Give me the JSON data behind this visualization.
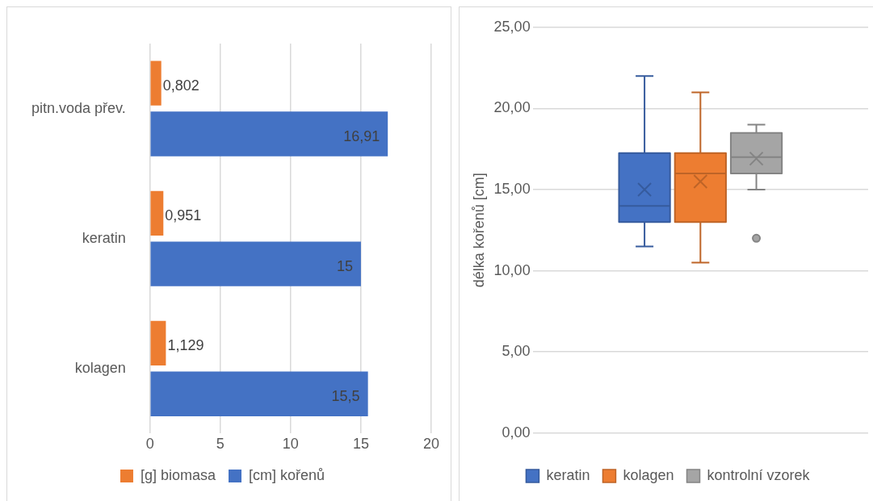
{
  "chart_data": [
    {
      "type": "bar",
      "orientation": "horizontal",
      "categories": [
        "pitn.voda přev.",
        "keratin",
        "kolagen"
      ],
      "series": [
        {
          "name": "[g] biomasa",
          "color": "#ed7d31",
          "values": [
            0.802,
            0.951,
            1.129
          ],
          "value_labels": [
            "0,802",
            "0,951",
            "1,129"
          ]
        },
        {
          "name": "[cm] kořenů",
          "color": "#4472c4",
          "values": [
            16.91,
            15,
            15.5
          ],
          "value_labels": [
            "16,91",
            "15",
            "15,5"
          ]
        }
      ],
      "xlim": [
        0,
        20
      ],
      "xticks": [
        0,
        5,
        10,
        15,
        20
      ],
      "grid": "x",
      "legend": "bottom"
    },
    {
      "type": "box",
      "categories": [
        null
      ],
      "ylabel": "délka kořenů [cm]",
      "series": [
        {
          "name": "keratin",
          "color": "#4472c4",
          "boxes": [
            {
              "low": 11.5,
              "q1": 13,
              "median": 14,
              "q3": 17.25,
              "high": 22,
              "mean": 15
            }
          ]
        },
        {
          "name": "kolagen",
          "color": "#ed7d31",
          "boxes": [
            {
              "low": 10.5,
              "q1": 13,
              "median": 16,
              "q3": 17.25,
              "high": 21,
              "mean": 15.5
            }
          ]
        },
        {
          "name": "kontrolní vzorek",
          "color": "#a5a5a5",
          "boxes": [
            {
              "low": 15,
              "q1": 16,
              "median": 17,
              "q3": 18.5,
              "high": 19,
              "mean": 16.91,
              "outliers": [
                12
              ]
            }
          ]
        }
      ],
      "ylim": [
        0,
        25
      ],
      "yticks": [
        {
          "value": 0,
          "label": "0,00"
        },
        {
          "value": 5,
          "label": "5,00"
        },
        {
          "value": 10,
          "label": "10,00"
        },
        {
          "value": 15,
          "label": "15,00"
        },
        {
          "value": 20,
          "label": "20,00"
        },
        {
          "value": 25,
          "label": "25,00"
        }
      ],
      "grid": "y",
      "legend": "bottom"
    }
  ]
}
